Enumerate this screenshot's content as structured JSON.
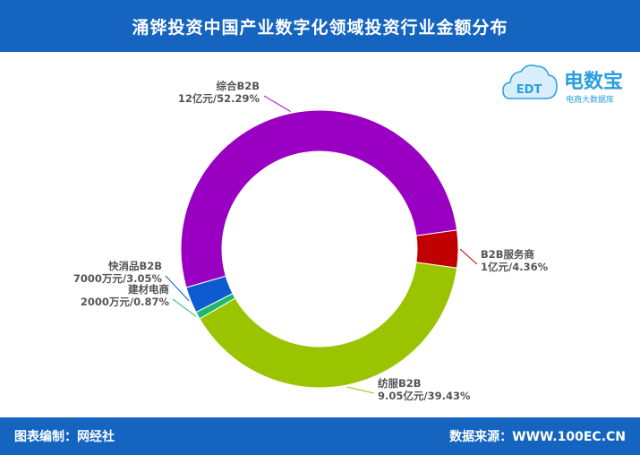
{
  "header": {
    "title": "涌铧投资中国产业数字化领域投资行业金额分布"
  },
  "footer": {
    "left": "图表编制：网经社",
    "right": "数据来源：WWW.100EC.CN"
  },
  "logo": {
    "title": "电数宝",
    "subtitle": "电商大数据库",
    "mark": "EDT"
  },
  "chart_data": {
    "type": "pie",
    "donut": true,
    "series": [
      {
        "name": "B2B服务商",
        "value_label": "1亿元/4.36%",
        "value_cny": 100000000,
        "percent": 4.36,
        "color": "#c00000"
      },
      {
        "name": "纺服B2B",
        "value_label": "9.05亿元/39.43%",
        "value_cny": 905000000,
        "percent": 39.43,
        "color": "#9bc400"
      },
      {
        "name": "建材电商",
        "value_label": "2000万元/0.87%",
        "value_cny": 20000000,
        "percent": 0.87,
        "color": "#1db86a"
      },
      {
        "name": "快消品B2B",
        "value_label": "7000万元/3.05%",
        "value_cny": 70000000,
        "percent": 3.05,
        "color": "#0d5bd1"
      },
      {
        "name": "综合B2B",
        "value_label": "12亿元/52.29%",
        "value_cny": 1200000000,
        "percent": 52.29,
        "color": "#9900c2"
      }
    ]
  }
}
